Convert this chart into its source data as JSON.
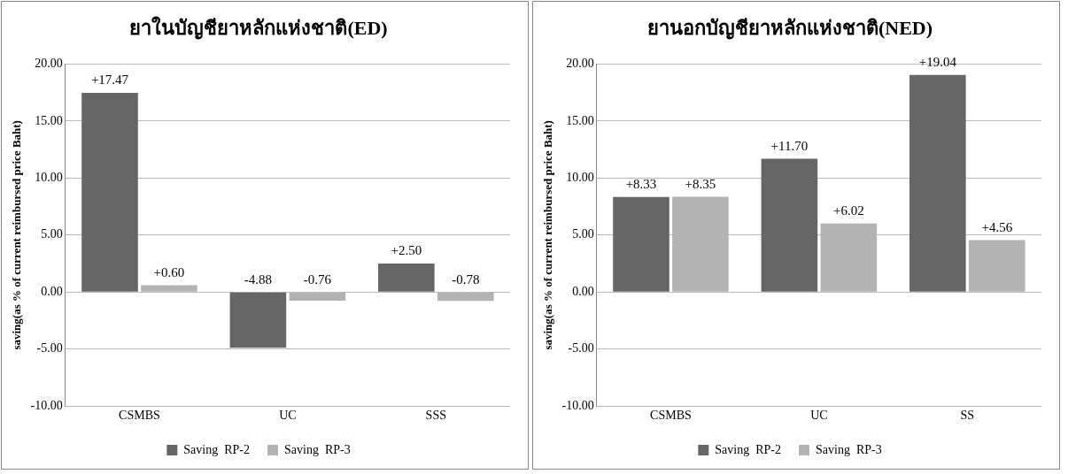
{
  "chart_data": [
    {
      "type": "bar",
      "title": "ยาในบัญชียาหลักแห่งชาติ(ED)",
      "ylabel": "saving(as % of current reimbursed price Baht)",
      "categories": [
        "CSMBS",
        "UC",
        "SSS"
      ],
      "series": [
        {
          "name": "Saving  RP-2",
          "color": "#666666",
          "values": [
            17.47,
            -4.88,
            2.5
          ],
          "value_labels": [
            "+17.47",
            "-4.88",
            "+2.50"
          ]
        },
        {
          "name": "Saving  RP-3",
          "color": "#b3b3b3",
          "values": [
            0.6,
            -0.76,
            -0.78
          ],
          "value_labels": [
            "+0.60",
            "-0.76",
            "-0.78"
          ]
        }
      ],
      "ylim": [
        -10,
        20
      ],
      "yticks": [
        {
          "value": -10,
          "label": "-10.00"
        },
        {
          "value": -5,
          "label": "-5.00"
        },
        {
          "value": 0,
          "label": "0.00"
        },
        {
          "value": 5,
          "label": "5.00"
        },
        {
          "value": 10,
          "label": "10.00"
        },
        {
          "value": 15,
          "label": "15.00"
        },
        {
          "value": 20,
          "label": "20.00"
        }
      ],
      "grid": "y",
      "legend": "bottom"
    },
    {
      "type": "bar",
      "title": "ยานอกบัญชียาหลักแห่งชาติ(NED)",
      "ylabel": "saving(as % of current reimbursed price Baht)",
      "categories": [
        "CSMBS",
        "UC",
        "SS"
      ],
      "series": [
        {
          "name": "Saving  RP-2",
          "color": "#666666",
          "values": [
            8.33,
            11.7,
            19.04
          ],
          "value_labels": [
            "+8.33",
            "+11.70",
            "+19.04"
          ]
        },
        {
          "name": "Saving  RP-3",
          "color": "#b3b3b3",
          "values": [
            8.35,
            6.02,
            4.56
          ],
          "value_labels": [
            "+8.35",
            "+6.02",
            "+4.56"
          ]
        }
      ],
      "ylim": [
        -10,
        20
      ],
      "yticks": [
        {
          "value": -10,
          "label": "-10.00"
        },
        {
          "value": -5,
          "label": "-5.00"
        },
        {
          "value": 0,
          "label": "0.00"
        },
        {
          "value": 5,
          "label": "5.00"
        },
        {
          "value": 10,
          "label": "10.00"
        },
        {
          "value": 15,
          "label": "15.00"
        },
        {
          "value": 20,
          "label": "20.00"
        }
      ],
      "grid": "y",
      "legend": "bottom"
    }
  ]
}
